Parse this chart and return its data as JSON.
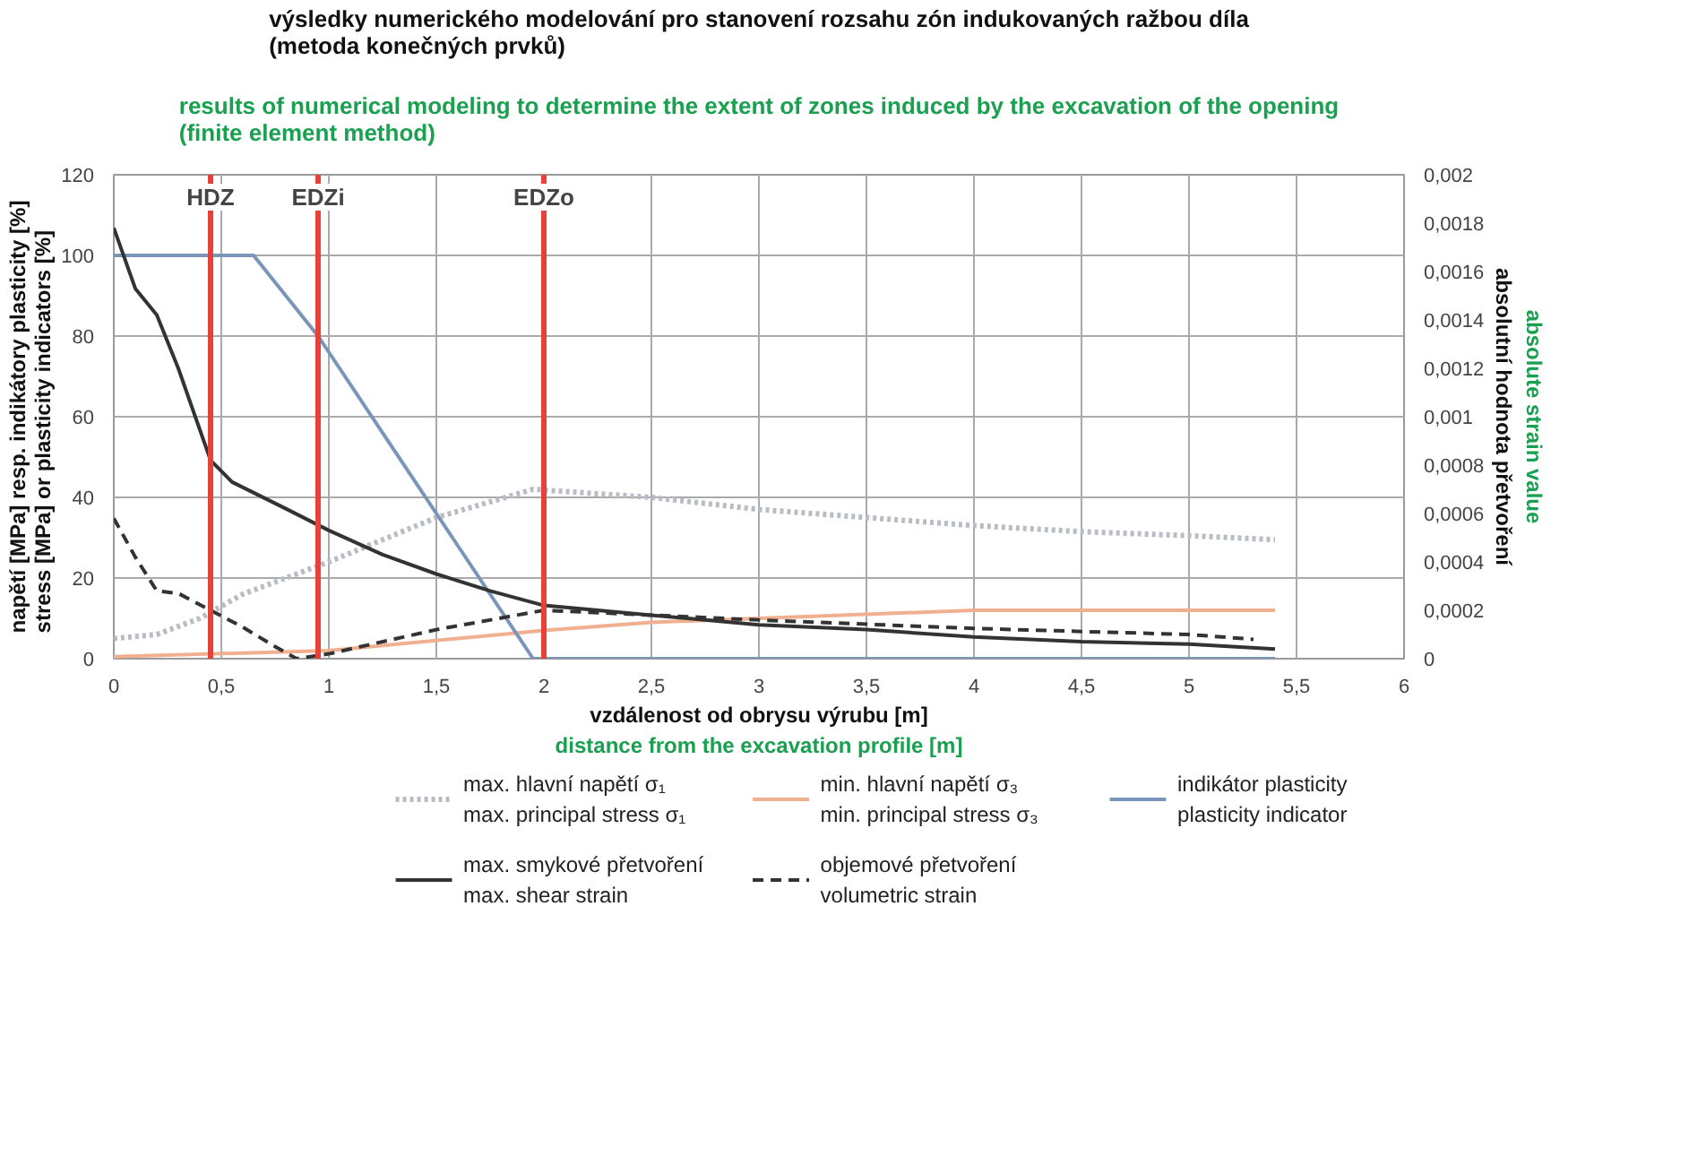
{
  "chart_data": {
    "type": "line",
    "title": "výsledky numerického modelování pro stanovení rozsahu zón indukovaných ražbou díla\n(metoda konečných prvků)",
    "subtitle": "results of numerical modeling to determine the extent of zones induced by the excavation of the opening\n(finite element method)",
    "xlabel": "vzdálenost od obrysu výrubu [m]\ndistance from the excavation profile [m]",
    "ylabel": "napětí [MPa] resp. indikátory plasticity [%]\nstress [MPa] or plasticity indicators [%]",
    "y2label": "absolutní hodnota přetvoření\nabsolute strain value",
    "xlim": [
      0,
      6
    ],
    "xticks": [
      0,
      {
        "value": 0.5,
        "label": "0,5"
      },
      1,
      {
        "value": 1.5,
        "label": "1,5"
      },
      2,
      {
        "value": 2.5,
        "label": "2,5"
      },
      3,
      {
        "value": 3.5,
        "label": "3,5"
      },
      4,
      {
        "value": 4.5,
        "label": "4,5"
      },
      5,
      {
        "value": 5.5,
        "label": "5,5"
      },
      6
    ],
    "ylim": [
      0,
      120
    ],
    "yticks": [
      0,
      20,
      40,
      60,
      80,
      100,
      120
    ],
    "y2lim": [
      0,
      0.002
    ],
    "y2ticks": [
      0,
      {
        "value": 0.0002,
        "label": "0,0002"
      },
      {
        "value": 0.0004,
        "label": "0,0004"
      },
      {
        "value": 0.0006,
        "label": "0,0006"
      },
      {
        "value": 0.0008,
        "label": "0,0008"
      },
      {
        "value": 0.001,
        "label": "0,001"
      },
      {
        "value": 0.0012,
        "label": "0,0012"
      },
      {
        "value": 0.0014,
        "label": "0,0014"
      },
      {
        "value": 0.0016,
        "label": "0,0016"
      },
      {
        "value": 0.0018,
        "label": "0,0018"
      },
      {
        "value": 0.002,
        "label": "0,002"
      }
    ],
    "grid": true,
    "legend": "bottom",
    "series": [
      {
        "name": "max. hlavní napětí σ₁\nmax. principal stress σ₁",
        "color": "#b8bcc4",
        "line_style": "dotted",
        "x": [
          0,
          0.2,
          0.4,
          0.6,
          1,
          1.5,
          1.95,
          2.5,
          3,
          3.5,
          4,
          4.5,
          5,
          5.4
        ],
        "values": [
          5,
          6,
          10,
          16,
          24,
          35,
          42,
          40,
          37,
          35,
          33,
          31.5,
          30.5,
          29.5
        ]
      },
      {
        "name": "min. hlavní napětí σ₃\nmin. principal stress σ₃",
        "color": "#f0b090",
        "line_style": "solid",
        "x": [
          0,
          1,
          2,
          2.5,
          3,
          4,
          5.4
        ],
        "values": [
          0.5,
          2,
          7,
          9,
          10,
          12,
          12
        ]
      },
      {
        "name": "indikátor plasticity\nplasticity indicator",
        "color": "#7a95b8",
        "line_style": "solid",
        "x": [
          0,
          0.65,
          0.95,
          1.95,
          5.4
        ],
        "values": [
          100,
          100,
          80,
          0,
          0
        ]
      },
      {
        "name": "max. smykové přetvoření\nmax. shear strain",
        "color": "#333333",
        "line_style": "solid",
        "axis": "y2",
        "x": [
          0,
          0.1,
          0.2,
          0.3,
          0.45,
          0.55,
          0.8,
          1,
          1.25,
          1.5,
          1.75,
          2,
          2.5,
          3,
          3.5,
          4,
          4.5,
          5,
          5.4
        ],
        "values": [
          0.00178,
          0.00153,
          0.00142,
          0.0012,
          0.00082,
          0.00073,
          0.00062,
          0.00053,
          0.00043,
          0.00035,
          0.00028,
          0.00022,
          0.00018,
          0.00014,
          0.00012,
          9e-05,
          7e-05,
          6e-05,
          4e-05
        ]
      },
      {
        "name": "objemové přetvoření\nvolumetric strain",
        "color": "#333333",
        "line_style": "dashed",
        "axis": "y2",
        "x": [
          0,
          0.1,
          0.2,
          0.3,
          0.45,
          0.6,
          0.75,
          0.85,
          1,
          1.5,
          2,
          2.5,
          3,
          4,
          5,
          5.3
        ],
        "values": [
          0.00058,
          0.00042,
          0.00028,
          0.00027,
          0.0002,
          0.00013,
          5e-05,
          0,
          2e-05,
          0.00012,
          0.0002,
          0.00018,
          0.00016,
          0.000125,
          0.0001,
          8e-05
        ]
      }
    ],
    "ref_lines": [
      {
        "axis": "x",
        "value": 0.45,
        "label": "HDZ",
        "color": "#e8413a"
      },
      {
        "axis": "x",
        "value": 0.95,
        "label": "EDZi",
        "color": "#e8413a"
      },
      {
        "axis": "x",
        "value": 2,
        "label": "EDZo",
        "color": "#e8413a"
      }
    ]
  }
}
